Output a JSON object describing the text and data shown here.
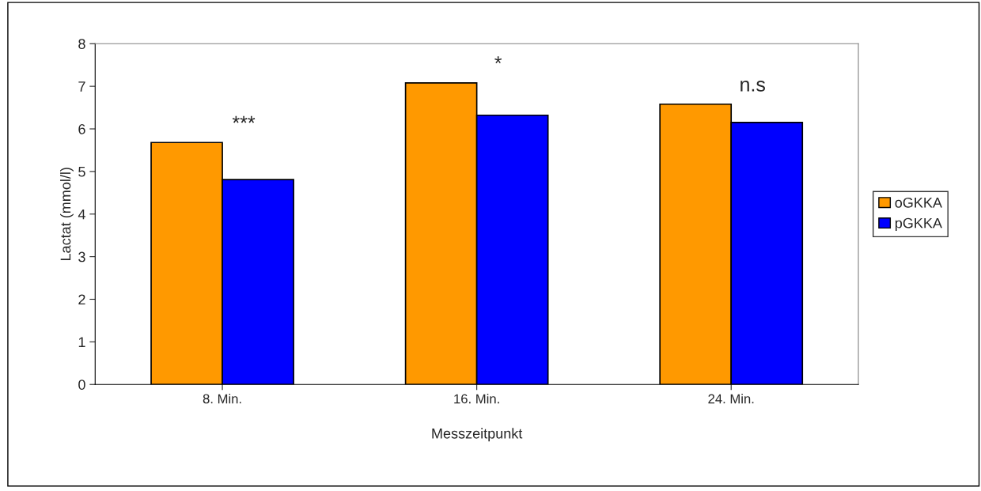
{
  "chart_data": {
    "type": "bar",
    "xlabel": "Messzeitpunkt",
    "ylabel": "Lactat (mmol/l)",
    "categories": [
      "8. Min.",
      "16. Min.",
      "24. Min."
    ],
    "series": [
      {
        "name": "oGKKA",
        "color": "#ff9900",
        "values": [
          5.68,
          7.08,
          6.58
        ]
      },
      {
        "name": "pGKKA",
        "color": "#0000ff",
        "values": [
          4.81,
          6.32,
          6.15
        ]
      }
    ],
    "ylim": [
      0,
      8
    ],
    "yticks": [
      0,
      1,
      2,
      3,
      4,
      5,
      6,
      7,
      8
    ],
    "grid": false,
    "legend": "right",
    "annotations": [
      "***",
      "*",
      "n.s"
    ]
  }
}
